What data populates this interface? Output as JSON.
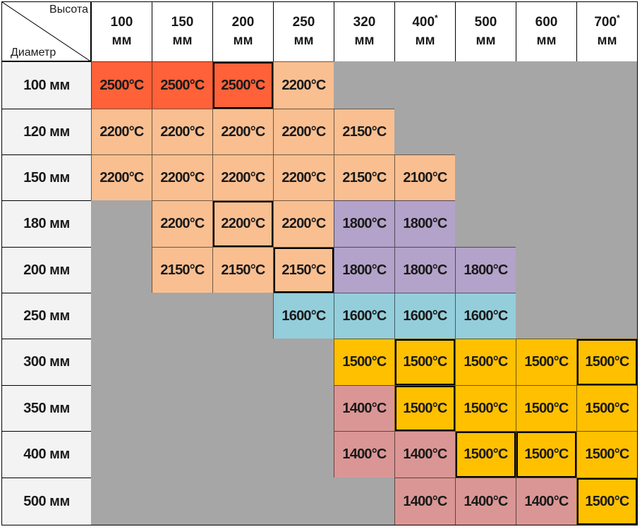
{
  "corner": {
    "top_label": "Высота",
    "bottom_label": "Диаметр"
  },
  "columns": [
    {
      "value": "100",
      "unit": "мм",
      "star": false
    },
    {
      "value": "150",
      "unit": "мм",
      "star": false
    },
    {
      "value": "200",
      "unit": "мм",
      "star": false
    },
    {
      "value": "250",
      "unit": "мм",
      "star": false
    },
    {
      "value": "320",
      "unit": "мм",
      "star": false
    },
    {
      "value": "400",
      "unit": "мм",
      "star": true
    },
    {
      "value": "500",
      "unit": "мм",
      "star": false
    },
    {
      "value": "600",
      "unit": "мм",
      "star": false
    },
    {
      "value": "700",
      "unit": "мм",
      "star": true
    }
  ],
  "star_mark": "*",
  "colors": {
    "2500": "#ff6139",
    "2200": "#f9bf91",
    "2150": "#f9bf91",
    "2100": "#f9bf91",
    "1800": "#b3a2c9",
    "1600": "#94cedb",
    "1500": "#ffc000",
    "1400": "#da9694",
    "empty": "#a6a6a6"
  },
  "rows": [
    {
      "label": "100 мм",
      "cells": [
        "2500°C",
        "2500°C",
        "2500°C",
        "2200°C",
        null,
        null,
        null,
        null,
        null
      ]
    },
    {
      "label": "120 мм",
      "cells": [
        "2200°C",
        "2200°C",
        "2200°C",
        "2200°C",
        "2150°C",
        null,
        null,
        null,
        null
      ]
    },
    {
      "label": "150 мм",
      "cells": [
        "2200°C",
        "2200°C",
        "2200°C",
        "2200°C",
        "2150°C",
        "2100°C",
        null,
        null,
        null
      ]
    },
    {
      "label": "180 мм",
      "cells": [
        null,
        "2200°C",
        "2200°C",
        "2200°C",
        "1800°C",
        "1800°C",
        null,
        null,
        null
      ]
    },
    {
      "label": "200 мм",
      "cells": [
        null,
        "2150°C",
        "2150°C",
        "2150°C",
        "1800°C",
        "1800°C",
        "1800°C",
        null,
        null
      ]
    },
    {
      "label": "250 мм",
      "cells": [
        null,
        null,
        null,
        "1600°C",
        "1600°C",
        "1600°C",
        "1600°C",
        null,
        null
      ]
    },
    {
      "label": "300 мм",
      "cells": [
        null,
        null,
        null,
        null,
        "1500°C",
        "1500°C",
        "1500°C",
        "1500°C",
        "1500°C"
      ]
    },
    {
      "label": "350 мм",
      "cells": [
        null,
        null,
        null,
        null,
        "1400°C",
        "1500°C",
        "1500°C",
        "1500°C",
        "1500°C"
      ]
    },
    {
      "label": "400 мм",
      "cells": [
        null,
        null,
        null,
        null,
        "1400°C",
        "1400°C",
        "1500°C",
        "1500°C",
        "1500°C"
      ]
    },
    {
      "label": "500 мм",
      "cells": [
        null,
        null,
        null,
        null,
        null,
        "1400°C",
        "1400°C",
        "1400°C",
        "1500°C"
      ]
    }
  ],
  "emphasized": [
    [
      0,
      2
    ],
    [
      3,
      2
    ],
    [
      4,
      3
    ],
    [
      6,
      5
    ],
    [
      6,
      8
    ],
    [
      7,
      5
    ],
    [
      8,
      6
    ],
    [
      8,
      7
    ],
    [
      9,
      8
    ]
  ]
}
